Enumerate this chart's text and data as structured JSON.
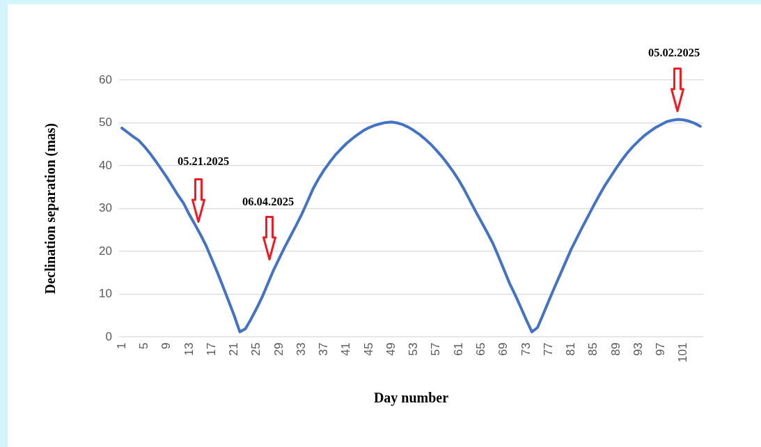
{
  "chart_data": {
    "type": "line",
    "xlabel": "Day number",
    "ylabel": "Declination separation (mas)",
    "x": [
      1,
      2,
      3,
      4,
      5,
      6,
      7,
      8,
      9,
      10,
      11,
      12,
      13,
      14,
      15,
      16,
      17,
      18,
      19,
      20,
      21,
      22,
      23,
      24,
      25,
      26,
      27,
      28,
      29,
      30,
      31,
      32,
      33,
      34,
      35,
      36,
      37,
      38,
      39,
      40,
      41,
      42,
      43,
      44,
      45,
      46,
      47,
      48,
      49,
      50,
      51,
      52,
      53,
      54,
      55,
      56,
      57,
      58,
      59,
      60,
      61,
      62,
      63,
      64,
      65,
      66,
      67,
      68,
      69,
      70,
      71,
      72,
      73,
      74,
      75,
      76,
      77,
      78,
      79,
      80,
      81,
      82,
      83,
      84,
      85,
      86,
      87,
      88,
      89,
      90,
      91,
      92,
      93,
      94,
      95,
      96,
      97,
      98,
      99,
      100,
      101,
      102,
      103,
      104
    ],
    "series": [
      {
        "color": "#4472c4",
        "values": [
          48.8,
          47.8,
          46.8,
          45.9,
          44.5,
          42.9,
          41.1,
          39.2,
          37.3,
          35.2,
          33.1,
          31.2,
          28.6,
          26.3,
          23.9,
          21.3,
          18.2,
          15.1,
          11.8,
          8.4,
          5.0,
          1.2,
          1.9,
          4.2,
          6.7,
          9.4,
          12.5,
          15.6,
          18.3,
          21.0,
          23.5,
          26.0,
          28.6,
          31.5,
          34.5,
          36.9,
          39.0,
          40.8,
          42.5,
          43.9,
          45.2,
          46.3,
          47.3,
          48.2,
          48.9,
          49.4,
          49.8,
          50.1,
          50.2,
          50.0,
          49.6,
          49.0,
          48.2,
          47.3,
          46.2,
          45.0,
          43.6,
          42.1,
          40.4,
          38.6,
          36.6,
          34.3,
          31.8,
          29.3,
          26.9,
          24.5,
          22.0,
          19.0,
          15.8,
          12.6,
          9.9,
          7.0,
          4.0,
          1.2,
          2.2,
          5.3,
          8.4,
          11.5,
          14.5,
          17.5,
          20.5,
          23.1,
          25.7,
          28.2,
          30.7,
          33.1,
          35.4,
          37.4,
          39.4,
          41.3,
          43.0,
          44.5,
          45.8,
          47.0,
          48.0,
          48.9,
          49.6,
          50.3,
          50.6,
          50.8,
          50.7,
          50.4,
          49.9,
          49.2
        ]
      }
    ],
    "xlim": [
      0.5,
      104.5
    ],
    "xticks": [
      1,
      5,
      9,
      13,
      17,
      21,
      25,
      29,
      33,
      37,
      41,
      45,
      49,
      53,
      57,
      61,
      65,
      69,
      73,
      77,
      81,
      85,
      89,
      93,
      97,
      101
    ],
    "ylim": [
      0,
      60
    ],
    "yticks": [
      0,
      10,
      20,
      30,
      40,
      50,
      60
    ],
    "grid": "y",
    "annotations": [
      "05.21.2025",
      "06.04.2025",
      "05.02.2025"
    ]
  }
}
